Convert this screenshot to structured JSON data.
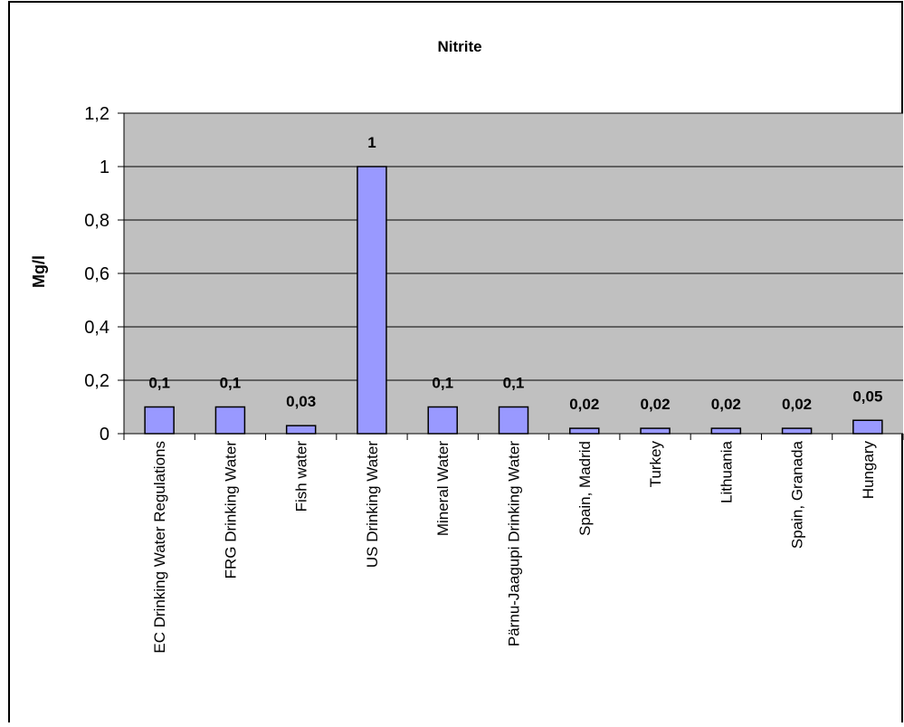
{
  "chart_data": {
    "type": "bar",
    "title": "Nitrite",
    "xlabel": "",
    "ylabel": "Mg/l",
    "ylim": [
      0,
      1.2
    ],
    "yticks": [
      "0",
      "0,2",
      "0,4",
      "0,6",
      "0,8",
      "1",
      "1,2"
    ],
    "ytick_values": [
      0,
      0.2,
      0.4,
      0.6,
      0.8,
      1.0,
      1.2
    ],
    "grid": true,
    "legend": "none",
    "categories": [
      "EC Drinking Water Regulations",
      "FRG Drinking Water",
      "Fish water",
      "US Drinking Water",
      "Mineral Water",
      "Pärnu-Jaagupi Drinking Water",
      "Spain, Madrid",
      "Turkey",
      "Lithuania",
      "Spain, Granada",
      "Hungary"
    ],
    "values": [
      0.1,
      0.1,
      0.03,
      1,
      0.1,
      0.1,
      0.02,
      0.02,
      0.02,
      0.02,
      0.05
    ],
    "data_labels": [
      "0,1",
      "0,1",
      "0,03",
      "1",
      "0,1",
      "0,1",
      "0,02",
      "0,02",
      "0,02",
      "0,02",
      "0,05"
    ]
  },
  "colors": {
    "plot_background": "#c0c0c0",
    "bar_fill": "#9999ff",
    "bar_stroke": "#000000",
    "gridline": "#000000",
    "frame": "#000000"
  }
}
